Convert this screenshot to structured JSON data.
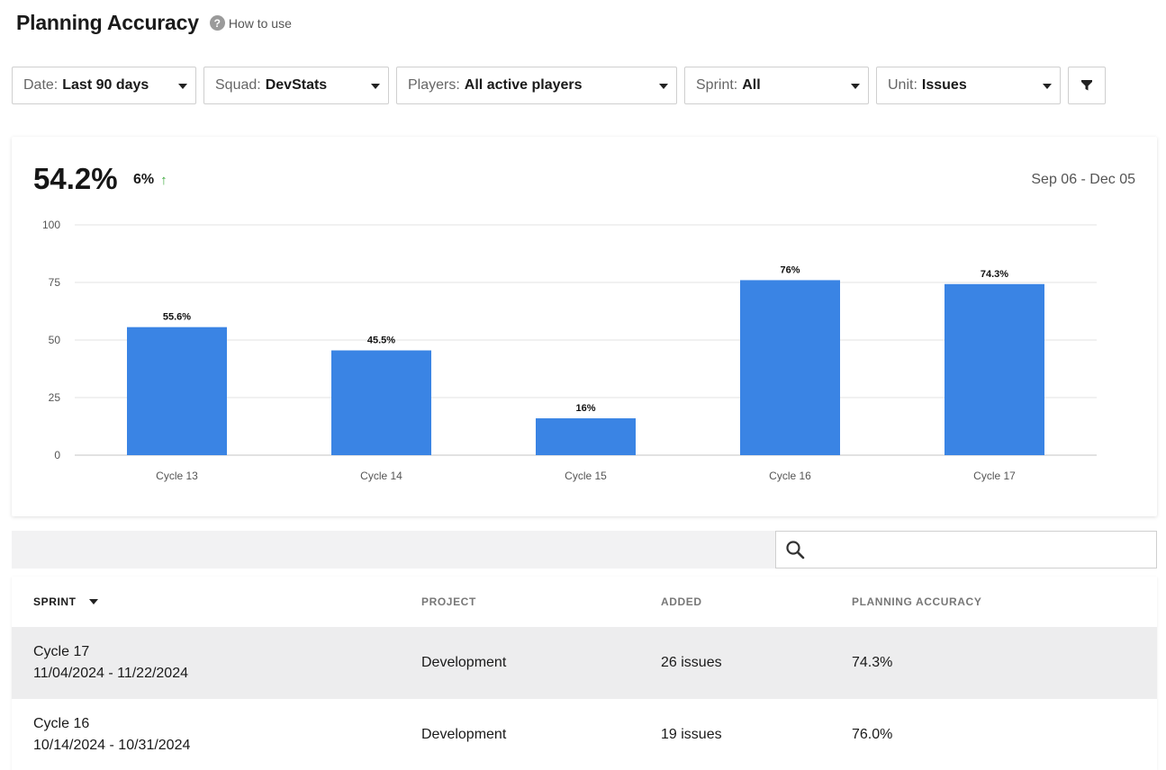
{
  "header": {
    "title": "Planning Accuracy",
    "help_label": "How to use",
    "help_icon": "question-circle-icon"
  },
  "filters": [
    {
      "label": "Date:",
      "value": "Last 90 days"
    },
    {
      "label": "Squad:",
      "value": "DevStats"
    },
    {
      "label": "Players:",
      "value": "All active players"
    },
    {
      "label": "Sprint:",
      "value": "All"
    },
    {
      "label": "Unit:",
      "value": "Issues"
    }
  ],
  "summary": {
    "metric": "54.2%",
    "change": "6%",
    "change_direction": "up",
    "change_color": "#3eaa3e",
    "date_range": "Sep 06 - Dec 05"
  },
  "chart_data": {
    "type": "bar",
    "categories": [
      "Cycle 13",
      "Cycle 14",
      "Cycle 15",
      "Cycle 16",
      "Cycle 17"
    ],
    "values": [
      55.6,
      45.5,
      16,
      76,
      74.3
    ],
    "data_labels": [
      "55.6%",
      "45.5%",
      "16%",
      "76%",
      "74.3%"
    ],
    "yticks": [
      0,
      25,
      50,
      75,
      100
    ],
    "ylim": [
      0,
      100
    ],
    "bar_color": "#3a84e4",
    "grid": true,
    "title": "",
    "xlabel": "",
    "ylabel": ""
  },
  "search": {
    "placeholder": "",
    "icon": "search-icon"
  },
  "table": {
    "columns": [
      "SPRINT",
      "PROJECT",
      "ADDED",
      "PLANNING ACCURACY"
    ],
    "rows": [
      {
        "sprint": "Cycle 17",
        "dates": "11/04/2024 - 11/22/2024",
        "project": "Development",
        "added": "26 issues",
        "accuracy": "74.3%"
      },
      {
        "sprint": "Cycle 16",
        "dates": "10/14/2024 - 10/31/2024",
        "project": "Development",
        "added": "19 issues",
        "accuracy": "76.0%"
      }
    ]
  }
}
